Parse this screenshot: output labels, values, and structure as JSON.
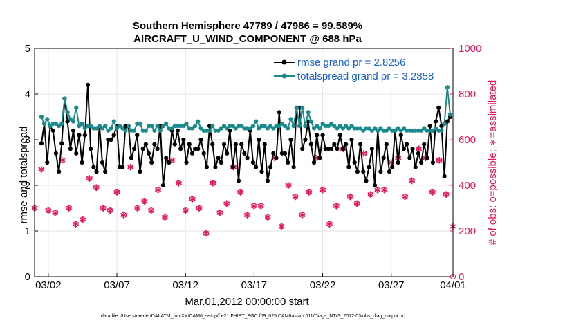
{
  "chart_data": {
    "type": "line",
    "title": "Southern Hemisphere 47789 / 47986 = 99.589%",
    "subtitle": "AIRCRAFT_U_WIND_COMPONENT @ 688 hPa",
    "xlabel": "Mar.01,2012 00:00:00 start",
    "ylabel_left": "rmse and totalspread",
    "ylabel_right": "# of obs: o=possible; ∗=assimilated",
    "footer": "data file: /Users/raeder/DAI/ATM_forcXX/CAM6_setup/f.e21.FHIST_BGC.f09_025.CAM6assim.011/Diags_NTrS_2012-03/obs_diag_output.nc",
    "xlim": [
      0.5,
      31.0
    ],
    "ylim_left": [
      0,
      5
    ],
    "ylim_right": [
      0,
      1000
    ],
    "x_tick_values": [
      1.5,
      6.5,
      11.5,
      16.5,
      21.5,
      26.5,
      31.0
    ],
    "x_tick_labels": [
      "03/02",
      "03/07",
      "03/12",
      "03/17",
      "03/22",
      "03/27",
      "04/01"
    ],
    "y_left_ticks": [
      "0",
      "1",
      "2",
      "3",
      "4",
      "5"
    ],
    "y_right_ticks": [
      "0",
      "200",
      "400",
      "600",
      "800",
      "1000"
    ],
    "grid": true,
    "series": [
      {
        "name": "rmse",
        "legend": "rmse grand pr = 2.8256",
        "color": "#000000",
        "axis": "left",
        "values": [
          2.92,
          3.35,
          2.5,
          3.3,
          3.2,
          2.7,
          2.3,
          2.92,
          3.9,
          3.4,
          2.8,
          3.2,
          2.7,
          3.1,
          2.5,
          3.1,
          4.2,
          2.8,
          2.4,
          2.3,
          3.3,
          2.5,
          2.3,
          3.0,
          3.0,
          3.1,
          3.3,
          2.4,
          2.4,
          3.3,
          3.3,
          2.6,
          2.8,
          3.1,
          2.3,
          2.8,
          2.9,
          2.7,
          2.5,
          2.9,
          2.8,
          3.3,
          2.0,
          2.6,
          2.5,
          3.2,
          2.9,
          3.2,
          2.8,
          3.0,
          2.5,
          2.9,
          2.7,
          2.8,
          2.8,
          3.0,
          2.7,
          2.4,
          3.3,
          2.9,
          2.4,
          2.6,
          2.5,
          2.9,
          2.7,
          3.2,
          2.4,
          2.9,
          2.1,
          2.9,
          2.7,
          2.6,
          3.2,
          2.5,
          2.4,
          3.0,
          2.3,
          2.9,
          2.1,
          2.4,
          2.7,
          2.6,
          3.6,
          2.7,
          2.7,
          2.5,
          3.0,
          2.4,
          3.7,
          3.7,
          2.8,
          3.0,
          3.4,
          2.9,
          2.5,
          3.1,
          2.6,
          3.1,
          2.8,
          2.8,
          2.8,
          2.9,
          2.8,
          3.1,
          2.8,
          2.9,
          2.4,
          3.0,
          2.5,
          2.3,
          2.9,
          2.3,
          2.1,
          2.4,
          2.8,
          2.0,
          3.2,
          2.3,
          2.6,
          2.9,
          2.3,
          2.4,
          3.2,
          2.5,
          3.1,
          2.8,
          2.9,
          2.6,
          2.8,
          2.4,
          2.7,
          2.5,
          2.9,
          2.6,
          3.3,
          2.5,
          3.4,
          3.7,
          3.3,
          2.2,
          3.4,
          3.5
        ]
      },
      {
        "name": "totalspread",
        "legend": "totalspread grand pr = 3.2858",
        "color": "#1a8a8a",
        "axis": "left",
        "values": [
          3.5,
          3.35,
          3.45,
          3.3,
          3.35,
          3.35,
          3.3,
          3.35,
          3.9,
          3.6,
          3.45,
          3.4,
          3.7,
          3.3,
          3.35,
          3.25,
          3.3,
          3.3,
          3.25,
          3.25,
          3.3,
          3.25,
          3.3,
          3.2,
          3.25,
          3.4,
          3.25,
          3.3,
          3.25,
          3.2,
          3.3,
          3.2,
          3.2,
          3.35,
          3.35,
          3.2,
          3.2,
          3.3,
          3.3,
          3.2,
          3.3,
          3.2,
          3.3,
          3.35,
          3.25,
          3.25,
          3.3,
          3.3,
          3.3,
          3.3,
          3.35,
          3.25,
          3.25,
          3.3,
          3.4,
          3.25,
          3.2,
          3.2,
          3.2,
          3.3,
          3.2,
          3.2,
          3.25,
          3.3,
          3.25,
          3.3,
          3.3,
          3.25,
          3.3,
          3.3,
          3.25,
          3.25,
          3.25,
          3.3,
          3.4,
          3.25,
          3.3,
          3.3,
          3.25,
          3.3,
          3.25,
          3.3,
          3.3,
          3.35,
          3.3,
          3.25,
          3.45,
          3.3,
          3.7,
          3.3,
          3.7,
          3.3,
          3.6,
          3.4,
          3.25,
          3.3,
          3.25,
          3.35,
          3.3,
          3.3,
          3.35,
          3.3,
          3.25,
          3.3,
          3.25,
          3.3,
          3.25,
          3.3,
          3.25,
          3.25,
          3.25,
          3.2,
          3.25,
          3.25,
          3.2,
          3.25,
          3.2,
          3.25,
          3.2,
          3.2,
          3.25,
          3.2,
          3.2,
          3.25,
          3.2,
          3.25,
          3.2,
          3.2,
          3.2,
          3.2,
          3.2,
          3.2,
          3.25,
          3.2,
          3.2,
          3.2,
          3.25,
          3.2,
          3.2,
          3.35,
          4.15,
          3.55
        ]
      },
      {
        "name": "obs_possible",
        "color": "#e8155a",
        "axis": "right",
        "marker": "circle",
        "x": [
          0.5,
          1.0,
          1.5,
          2.0,
          2.5,
          3.0,
          3.5,
          4.0,
          4.5,
          5.0,
          5.5,
          6.0,
          6.5,
          7.0,
          7.5,
          8.0,
          8.5,
          9.0,
          9.5,
          10.0,
          10.5,
          11.0,
          11.5,
          12.0,
          12.5,
          13.0,
          13.5,
          14.0,
          14.5,
          15.0,
          15.5,
          16.0,
          16.5,
          17.0,
          17.5,
          18.0,
          18.5,
          19.0,
          19.5,
          20.0,
          20.5,
          21.0,
          21.5,
          22.0,
          22.5,
          23.0,
          23.5,
          24.0,
          24.5,
          25.0,
          25.5,
          26.0,
          26.5,
          27.0,
          27.5,
          28.0,
          28.5,
          29.0,
          29.5,
          30.0,
          30.5,
          31.0
        ],
        "values": [
          300,
          470,
          290,
          280,
          510,
          300,
          230,
          250,
          430,
          390,
          300,
          290,
          370,
          270,
          480,
          300,
          330,
          290,
          380,
          260,
          510,
          410,
          290,
          340,
          300,
          190,
          410,
          280,
          320,
          480,
          370,
          270,
          310,
          310,
          260,
          520,
          220,
          400,
          350,
          270,
          370,
          520,
          380,
          230,
          310,
          560,
          350,
          320,
          540,
          360,
          380,
          380,
          500,
          520,
          350,
          420,
          560,
          520,
          370,
          510,
          360,
          0
        ]
      },
      {
        "name": "obs_assimilated",
        "color": "#e8155a",
        "axis": "right",
        "marker": "asterisk",
        "x": [
          0.5,
          1.0,
          1.5,
          2.0,
          2.5,
          3.0,
          3.5,
          4.0,
          4.5,
          5.0,
          5.5,
          6.0,
          6.5,
          7.0,
          7.5,
          8.0,
          8.5,
          9.0,
          9.5,
          10.0,
          10.5,
          11.0,
          11.5,
          12.0,
          12.5,
          13.0,
          13.5,
          14.0,
          14.5,
          15.0,
          15.5,
          16.0,
          16.5,
          17.0,
          17.5,
          18.0,
          18.5,
          19.0,
          19.5,
          20.0,
          20.5,
          21.0,
          21.5,
          22.0,
          22.5,
          23.0,
          23.5,
          24.0,
          24.5,
          25.0,
          25.5,
          26.0,
          26.5,
          27.0,
          27.5,
          28.0,
          28.5,
          29.0,
          29.5,
          30.0,
          30.5,
          31.0
        ],
        "values": [
          300,
          470,
          290,
          280,
          510,
          300,
          230,
          250,
          430,
          390,
          300,
          290,
          370,
          270,
          480,
          300,
          330,
          290,
          380,
          260,
          510,
          410,
          290,
          340,
          300,
          190,
          410,
          280,
          320,
          480,
          370,
          270,
          310,
          310,
          260,
          520,
          220,
          400,
          350,
          270,
          370,
          520,
          380,
          230,
          310,
          560,
          350,
          320,
          540,
          360,
          380,
          380,
          500,
          520,
          350,
          420,
          560,
          520,
          370,
          510,
          360,
          220
        ]
      }
    ]
  }
}
